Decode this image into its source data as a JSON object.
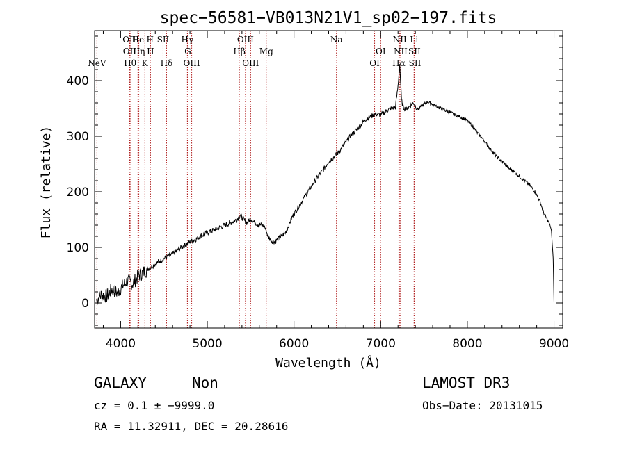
{
  "chart_data": {
    "type": "line",
    "title": "spec−56581−VB013N21V1_sp02−197.fits",
    "xlabel": "Wavelength (Å)",
    "ylabel": "Flux (relative)",
    "xlim": [
      3700,
      9100
    ],
    "ylim": [
      -45,
      490
    ],
    "x_ticks": [
      4000,
      5000,
      6000,
      7000,
      8000,
      9000
    ],
    "y_ticks": [
      0,
      100,
      200,
      300,
      400
    ],
    "grid": false,
    "series": [
      {
        "name": "flux",
        "x": [
          3720,
          3780,
          3840,
          3900,
          3960,
          4020,
          4080,
          4140,
          4200,
          4260,
          4320,
          4380,
          4440,
          4500,
          4560,
          4620,
          4680,
          4740,
          4800,
          4860,
          4920,
          4980,
          5040,
          5100,
          5160,
          5220,
          5280,
          5340,
          5380,
          5420,
          5460,
          5500,
          5540,
          5580,
          5620,
          5660,
          5700,
          5740,
          5780,
          5820,
          5860,
          5900,
          5940,
          5980,
          6040,
          6100,
          6160,
          6220,
          6280,
          6340,
          6400,
          6460,
          6520,
          6580,
          6640,
          6700,
          6760,
          6820,
          6880,
          6940,
          7000,
          7060,
          7120,
          7170,
          7200,
          7220,
          7240,
          7260,
          7300,
          7340,
          7380,
          7420,
          7480,
          7540,
          7600,
          7660,
          7720,
          7780,
          7840,
          7900,
          7960,
          8000,
          8060,
          8120,
          8180,
          8240,
          8300,
          8360,
          8420,
          8480,
          8540,
          8600,
          8660,
          8720,
          8780,
          8840,
          8880,
          8920,
          8950,
          8970,
          8990,
          9000
        ],
        "y": [
          5,
          15,
          12,
          25,
          18,
          30,
          40,
          35,
          48,
          55,
          62,
          68,
          74,
          80,
          85,
          90,
          98,
          104,
          110,
          114,
          120,
          125,
          129,
          133,
          137,
          141,
          145,
          150,
          158,
          150,
          144,
          152,
          146,
          142,
          140,
          138,
          120,
          112,
          110,
          116,
          120,
          126,
          140,
          155,
          170,
          185,
          200,
          215,
          228,
          240,
          255,
          262,
          272,
          285,
          298,
          308,
          318,
          330,
          335,
          340,
          338,
          345,
          350,
          352,
          390,
          430,
          365,
          352,
          348,
          355,
          360,
          348,
          355,
          362,
          358,
          352,
          348,
          344,
          340,
          336,
          332,
          328,
          318,
          305,
          295,
          282,
          270,
          260,
          252,
          242,
          236,
          228,
          220,
          212,
          200,
          182,
          162,
          150,
          142,
          130,
          80,
          0
        ]
      }
    ],
    "emission_lines": [
      {
        "label": "NeV",
        "wl": 3727,
        "row": 3
      },
      {
        "label": "OII",
        "wl": 4100,
        "row": 1
      },
      {
        "label": "OII",
        "wl": 4105,
        "row": 2
      },
      {
        "label": "Hθ",
        "wl": 4110,
        "row": 3
      },
      {
        "label": "He",
        "wl": 4200,
        "row": 1
      },
      {
        "label": "Hη",
        "wl": 4210,
        "row": 2
      },
      {
        "label": "H",
        "wl": 4340,
        "row": 1
      },
      {
        "label": "H",
        "wl": 4345,
        "row": 2
      },
      {
        "label": "K",
        "wl": 4280,
        "row": 3
      },
      {
        "label": "SII",
        "wl": 4490,
        "row": 1
      },
      {
        "label": "Hδ",
        "wl": 4530,
        "row": 3
      },
      {
        "label": "Hγ",
        "wl": 4770,
        "row": 1
      },
      {
        "label": "G",
        "wl": 4775,
        "row": 2
      },
      {
        "label": "OIII",
        "wl": 4820,
        "row": 3
      },
      {
        "label": "OIII",
        "wl": 5440,
        "row": 1
      },
      {
        "label": "Hβ",
        "wl": 5370,
        "row": 2
      },
      {
        "label": "OIII",
        "wl": 5500,
        "row": 3
      },
      {
        "label": "Mg",
        "wl": 5680,
        "row": 2
      },
      {
        "label": "Na",
        "wl": 6490,
        "row": 1
      },
      {
        "label": "OI",
        "wl": 7000,
        "row": 2
      },
      {
        "label": "OI",
        "wl": 6930,
        "row": 3
      },
      {
        "label": "NII",
        "wl": 7220,
        "row": 1
      },
      {
        "label": "NII",
        "wl": 7230,
        "row": 2
      },
      {
        "label": "Hα",
        "wl": 7210,
        "row": 3
      },
      {
        "label": "Li",
        "wl": 7385,
        "row": 1
      },
      {
        "label": "SII",
        "wl": 7390,
        "row": 2
      },
      {
        "label": "SII",
        "wl": 7395,
        "row": 3
      }
    ],
    "line_wavelengths": [
      3727,
      4100,
      4105,
      4110,
      4200,
      4210,
      4280,
      4340,
      4345,
      4490,
      4530,
      4770,
      4775,
      4820,
      5370,
      5440,
      5500,
      5680,
      6490,
      6930,
      7000,
      7210,
      7220,
      7230,
      7385,
      7390,
      7395
    ]
  },
  "info": {
    "object_class": "GALAXY",
    "subclass": "Non",
    "survey": "LAMOST DR3",
    "cz": "cz = 0.1 ± −9999.0",
    "obs_date": "Obs−Date: 20131015",
    "radec": "RA =  11.32911, DEC =  20.28616"
  }
}
